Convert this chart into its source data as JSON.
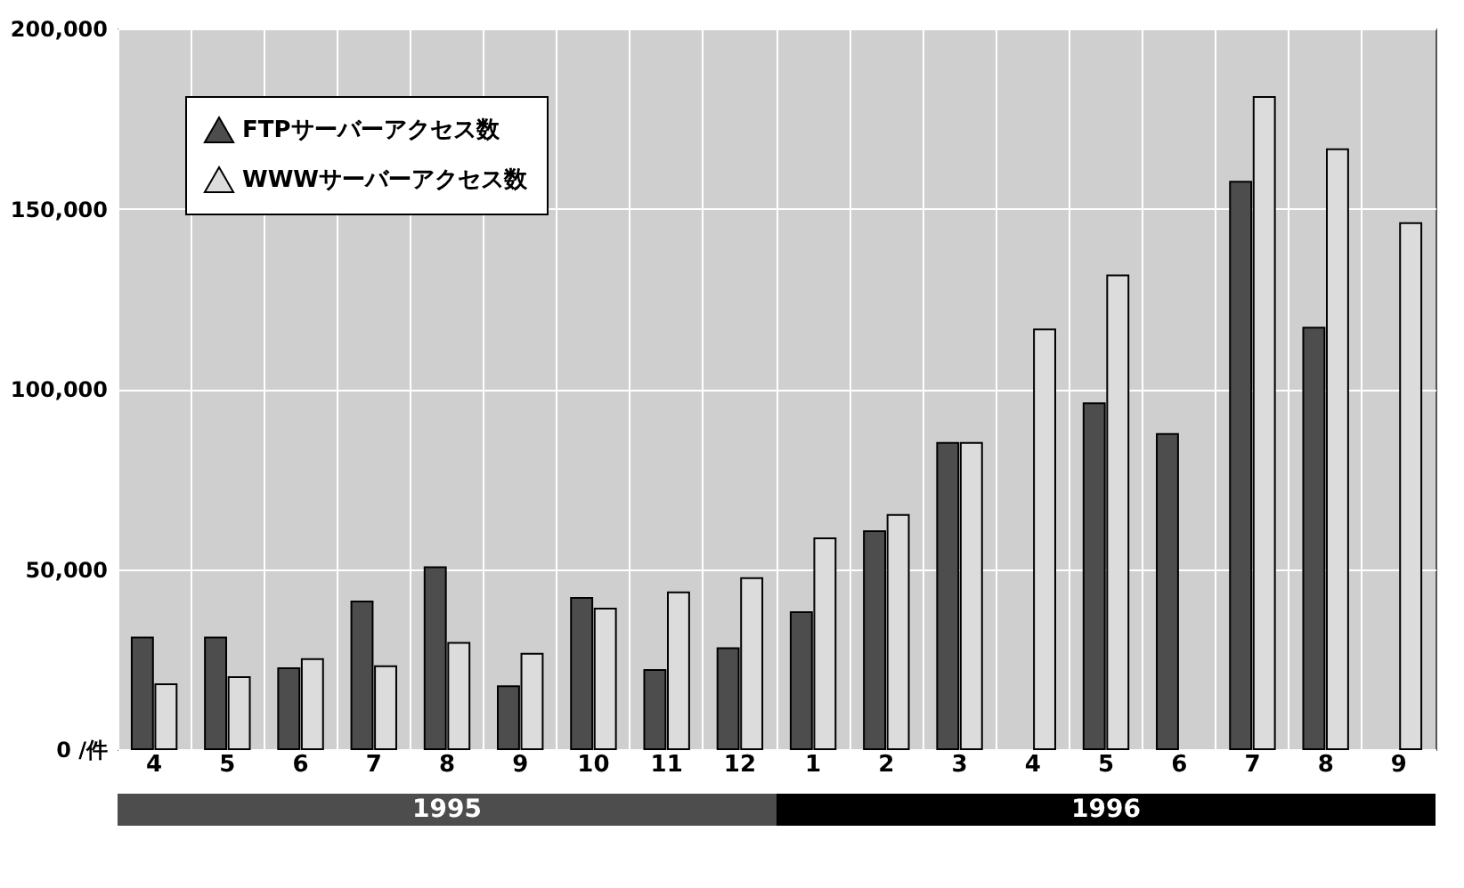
{
  "chart_data": {
    "type": "bar",
    "categories": [
      "4",
      "5",
      "6",
      "7",
      "8",
      "9",
      "10",
      "11",
      "12",
      "1",
      "2",
      "3",
      "4",
      "5",
      "6",
      "7",
      "8",
      "9"
    ],
    "series": [
      {
        "name": "FTPサーバーアクセス数",
        "color": "#4d4d4d",
        "values": [
          31000,
          31000,
          22500,
          41000,
          50500,
          17500,
          42000,
          22000,
          28000,
          38000,
          60500,
          85000,
          null,
          96000,
          87500,
          157500,
          117000,
          null
        ]
      },
      {
        "name": "WWWサーバーアクセス数",
        "color": "#dcdcdc",
        "values": [
          18000,
          20000,
          25000,
          23000,
          29500,
          26500,
          39000,
          43500,
          47500,
          58500,
          65000,
          85000,
          116500,
          131500,
          null,
          181000,
          166500,
          146000
        ]
      }
    ],
    "ylim": [
      0,
      200000
    ],
    "yticks": [
      {
        "value": 0,
        "label": "0 /件"
      },
      {
        "value": 50000,
        "label": "50,000"
      },
      {
        "value": 100000,
        "label": "100,000"
      },
      {
        "value": 150000,
        "label": "150,000"
      },
      {
        "value": 200000,
        "label": "200,000"
      }
    ],
    "annotations": [
      "1995",
      "1996"
    ],
    "grid": true,
    "legend": "top left"
  }
}
